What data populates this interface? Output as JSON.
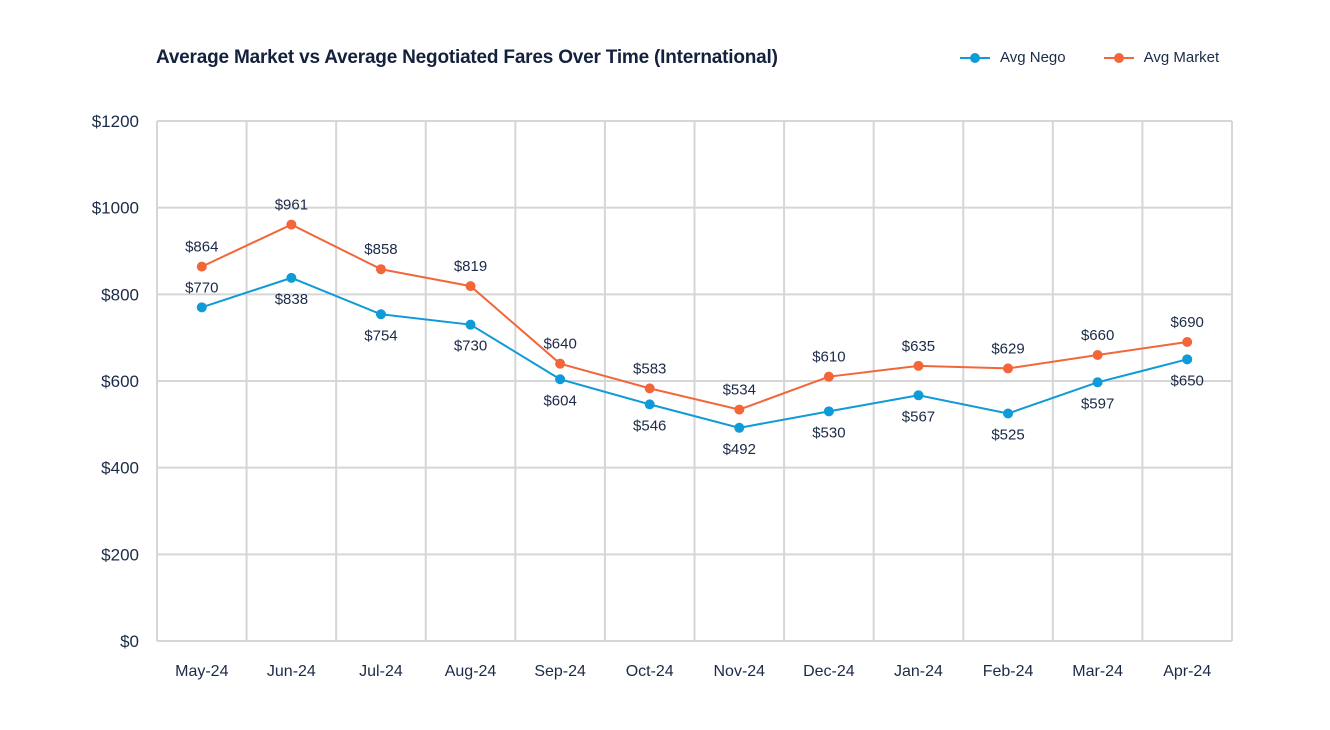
{
  "chart_data": {
    "type": "line",
    "title": "Average Market vs Average Negotiated Fares Over Time (International)",
    "xlabel": "",
    "ylabel": "",
    "categories": [
      "May-24",
      "Jun-24",
      "Jul-24",
      "Aug-24",
      "Sep-24",
      "Oct-24",
      "Nov-24",
      "Dec-24",
      "Jan-24",
      "Feb-24",
      "Mar-24",
      "Apr-24"
    ],
    "ylim": [
      0,
      1200
    ],
    "yticks": [
      0,
      200,
      400,
      600,
      800,
      1000,
      1200
    ],
    "ytick_labels": [
      "$0",
      "$200",
      "$400",
      "$600",
      "$800",
      "$1000",
      "$1200"
    ],
    "grid": true,
    "legend_position": "top-right",
    "series": [
      {
        "name": "Avg Nego",
        "color": "#0f9ad8",
        "values": [
          770,
          838,
          754,
          730,
          604,
          546,
          492,
          530,
          567,
          525,
          597,
          650
        ],
        "labels": [
          "$770",
          "$838",
          "$754",
          "$730",
          "$604",
          "$546",
          "$492",
          "$530",
          "$567",
          "$525",
          "$597",
          "$650"
        ]
      },
      {
        "name": "Avg Market",
        "color": "#f2663a",
        "values": [
          864,
          961,
          858,
          819,
          640,
          583,
          534,
          610,
          635,
          629,
          660,
          690
        ],
        "labels": [
          "$864",
          "$961",
          "$858",
          "$819",
          "$640",
          "$583",
          "$534",
          "$610",
          "$635",
          "$629",
          "$660",
          "$690"
        ]
      }
    ]
  },
  "legend": [
    {
      "label": "Avg Nego",
      "color": "#0f9ad8"
    },
    {
      "label": "Avg Market",
      "color": "#f2663a"
    }
  ]
}
